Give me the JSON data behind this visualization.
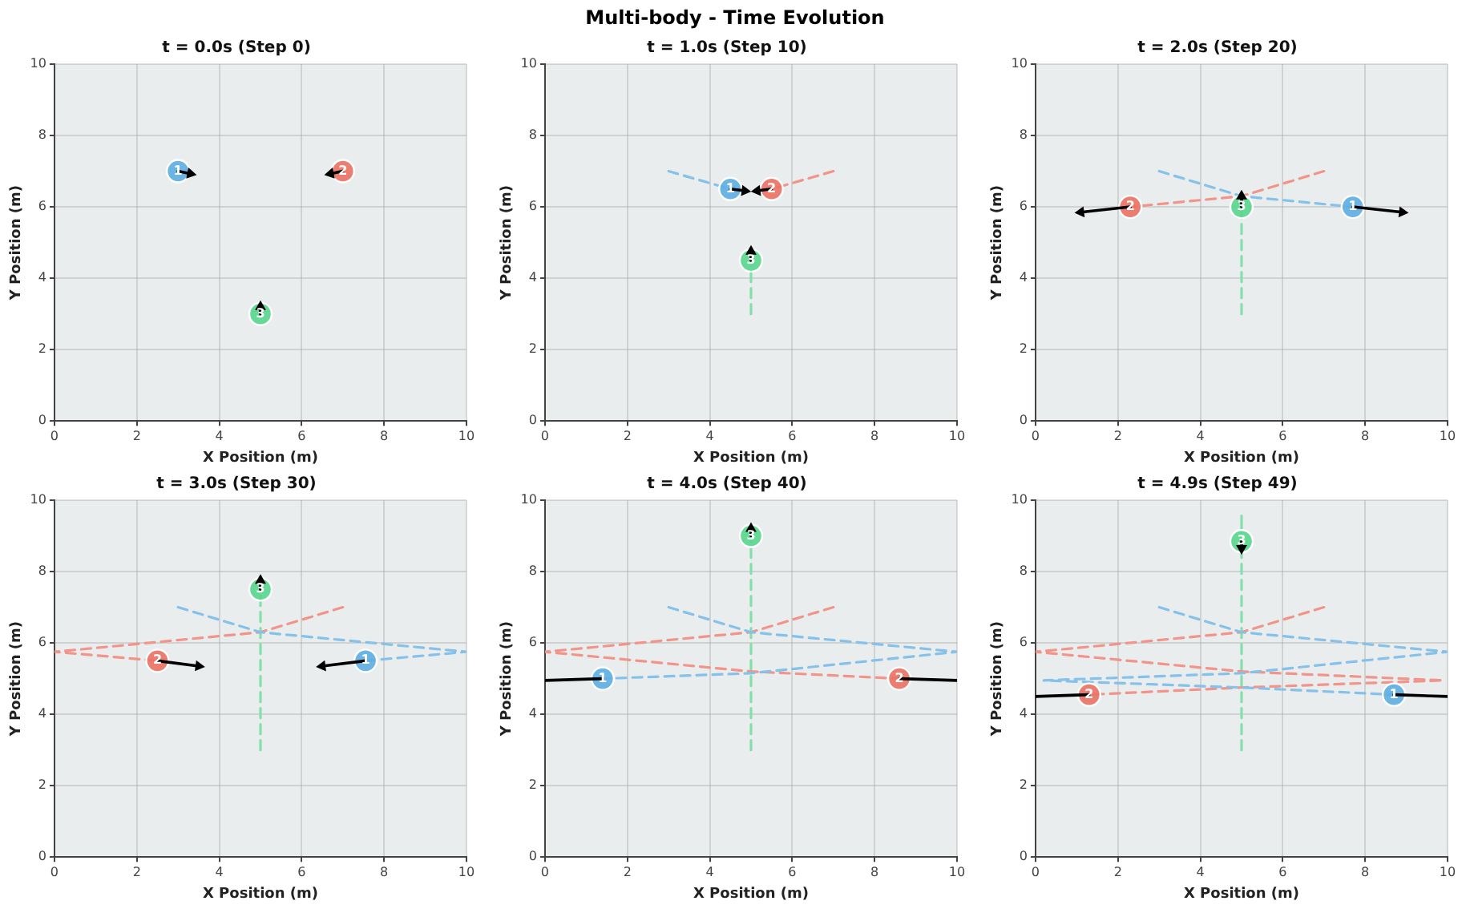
{
  "chart_data": [
    {
      "type": "scatter",
      "title": "t = 0.0s (Step 0)",
      "xlabel": "X Position (m)",
      "ylabel": "Y Position (m)",
      "annotations": [
        "Multi-body - Time Evolution",
        {
          "text": "1",
          "x": 3,
          "y": 7
        },
        {
          "text": "2",
          "x": 7,
          "y": 7
        },
        {
          "text": "3",
          "x": 5,
          "y": 3
        }
      ],
      "xlim": [
        0,
        10
      ],
      "ylim": [
        0,
        10
      ],
      "xticks": [
        0,
        2,
        4,
        6,
        8,
        10
      ],
      "yticks": [
        0,
        2,
        4,
        6,
        8,
        10
      ],
      "grid": true,
      "series": [
        {
          "type": "line",
          "color": "#000000",
          "x": [
            3,
            3.3
          ],
          "values": [
            7,
            6.93
          ],
          "marker": "triangle",
          "line_style": "solid"
        },
        {
          "type": "line",
          "color": "#000000",
          "x": [
            7,
            6.7
          ],
          "values": [
            7,
            6.93
          ],
          "marker": "triangle",
          "line_style": "solid"
        },
        {
          "type": "line",
          "color": "#000000",
          "x": [
            5,
            5
          ],
          "values": [
            3,
            3.2
          ],
          "marker": "triangle",
          "line_style": "solid"
        },
        {
          "type": "scatter",
          "color": "#5dade2",
          "x": [
            3
          ],
          "values": [
            7
          ],
          "marker": "circle"
        },
        {
          "type": "scatter",
          "color": "#ec7063",
          "x": [
            7
          ],
          "values": [
            7
          ],
          "marker": "circle"
        },
        {
          "type": "scatter",
          "color": "#58d68d",
          "x": [
            5
          ],
          "values": [
            3
          ],
          "marker": "circle"
        }
      ]
    },
    {
      "type": "scatter",
      "title": "t = 1.0s (Step 10)",
      "xlabel": "X Position (m)",
      "ylabel": "Y Position (m)",
      "annotations": [
        {
          "text": "1",
          "x": 4.5,
          "y": 6.5
        },
        {
          "text": "2",
          "x": 5.5,
          "y": 6.5
        },
        {
          "text": "3",
          "x": 5,
          "y": 4.5
        }
      ],
      "xlim": [
        0,
        10
      ],
      "ylim": [
        0,
        10
      ],
      "xticks": [
        0,
        2,
        4,
        6,
        8,
        10
      ],
      "yticks": [
        0,
        2,
        4,
        6,
        8,
        10
      ],
      "grid": true,
      "series": [
        {
          "type": "line",
          "color": "#85c1e9",
          "x": [
            3,
            4.5
          ],
          "values": [
            7,
            6.5
          ],
          "marker": "none",
          "line_style": "dashed"
        },
        {
          "type": "line",
          "color": "#f1948a",
          "x": [
            7,
            5.5
          ],
          "values": [
            7,
            6.5
          ],
          "marker": "none",
          "line_style": "dashed"
        },
        {
          "type": "line",
          "color": "#82e0aa",
          "x": [
            5,
            5
          ],
          "values": [
            3,
            4.5
          ],
          "marker": "none",
          "line_style": "dashed"
        },
        {
          "type": "line",
          "color": "#000000",
          "x": [
            4.5,
            4.85
          ],
          "values": [
            6.5,
            6.45
          ],
          "marker": "triangle",
          "line_style": "solid"
        },
        {
          "type": "line",
          "color": "#000000",
          "x": [
            5.5,
            5.15
          ],
          "values": [
            6.5,
            6.45
          ],
          "marker": "triangle",
          "line_style": "solid"
        },
        {
          "type": "line",
          "color": "#000000",
          "x": [
            5,
            5
          ],
          "values": [
            4.5,
            4.75
          ],
          "marker": "triangle",
          "line_style": "solid"
        },
        {
          "type": "scatter",
          "color": "#5dade2",
          "x": [
            4.5
          ],
          "values": [
            6.5
          ],
          "marker": "circle"
        },
        {
          "type": "scatter",
          "color": "#ec7063",
          "x": [
            5.5
          ],
          "values": [
            6.5
          ],
          "marker": "circle"
        },
        {
          "type": "scatter",
          "color": "#58d68d",
          "x": [
            5
          ],
          "values": [
            4.5
          ],
          "marker": "circle"
        }
      ]
    },
    {
      "type": "scatter",
      "title": "t = 2.0s (Step 20)",
      "xlabel": "X Position (m)",
      "ylabel": "Y Position (m)",
      "annotations": [
        {
          "text": "1",
          "x": 7.7,
          "y": 6
        },
        {
          "text": "2",
          "x": 2.3,
          "y": 6
        },
        {
          "text": "3",
          "x": 5,
          "y": 6
        }
      ],
      "xlim": [
        0,
        10
      ],
      "ylim": [
        0,
        10
      ],
      "xticks": [
        0,
        2,
        4,
        6,
        8,
        10
      ],
      "yticks": [
        0,
        2,
        4,
        6,
        8,
        10
      ],
      "grid": true,
      "series": [
        {
          "type": "line",
          "color": "#85c1e9",
          "x": [
            3,
            5,
            7.7
          ],
          "values": [
            7,
            6.3,
            6
          ],
          "marker": "none",
          "line_style": "dashed"
        },
        {
          "type": "line",
          "color": "#f1948a",
          "x": [
            7,
            5,
            2.3
          ],
          "values": [
            7,
            6.3,
            6
          ],
          "marker": "none",
          "line_style": "dashed"
        },
        {
          "type": "line",
          "color": "#82e0aa",
          "x": [
            5,
            5
          ],
          "values": [
            3,
            6
          ],
          "marker": "none",
          "line_style": "dashed"
        },
        {
          "type": "line",
          "color": "#000000",
          "x": [
            7.7,
            8.9
          ],
          "values": [
            6,
            5.85
          ],
          "marker": "triangle",
          "line_style": "solid"
        },
        {
          "type": "line",
          "color": "#000000",
          "x": [
            2.3,
            1.1
          ],
          "values": [
            6,
            5.85
          ],
          "marker": "triangle",
          "line_style": "solid"
        },
        {
          "type": "line",
          "color": "#000000",
          "x": [
            5,
            5
          ],
          "values": [
            6,
            6.3
          ],
          "marker": "triangle",
          "line_style": "solid"
        },
        {
          "type": "scatter",
          "color": "#5dade2",
          "x": [
            7.7
          ],
          "values": [
            6
          ],
          "marker": "circle"
        },
        {
          "type": "scatter",
          "color": "#ec7063",
          "x": [
            2.3
          ],
          "values": [
            6
          ],
          "marker": "circle"
        },
        {
          "type": "scatter",
          "color": "#58d68d",
          "x": [
            5
          ],
          "values": [
            6
          ],
          "marker": "circle"
        }
      ]
    },
    {
      "type": "scatter",
      "title": "t = 3.0s (Step 30)",
      "xlabel": "X Position (m)",
      "ylabel": "Y Position (m)",
      "annotations": [
        {
          "text": "1",
          "x": 7.55,
          "y": 5.5
        },
        {
          "text": "2",
          "x": 2.5,
          "y": 5.5
        },
        {
          "text": "3",
          "x": 5,
          "y": 7.5
        }
      ],
      "xlim": [
        0,
        10
      ],
      "ylim": [
        0,
        10
      ],
      "xticks": [
        0,
        2,
        4,
        6,
        8,
        10
      ],
      "yticks": [
        0,
        2,
        4,
        6,
        8,
        10
      ],
      "grid": true,
      "series": [
        {
          "type": "line",
          "color": "#85c1e9",
          "x": [
            3,
            5,
            10,
            7.55
          ],
          "values": [
            7,
            6.3,
            5.75,
            5.5
          ],
          "marker": "none",
          "line_style": "dashed"
        },
        {
          "type": "line",
          "color": "#f1948a",
          "x": [
            7,
            5,
            0,
            2.5
          ],
          "values": [
            7,
            6.3,
            5.75,
            5.5
          ],
          "marker": "none",
          "line_style": "dashed"
        },
        {
          "type": "line",
          "color": "#82e0aa",
          "x": [
            5,
            5
          ],
          "values": [
            3,
            7.5
          ],
          "marker": "none",
          "line_style": "dashed"
        },
        {
          "type": "line",
          "color": "#000000",
          "x": [
            7.55,
            6.5
          ],
          "values": [
            5.5,
            5.35
          ],
          "marker": "triangle",
          "line_style": "solid"
        },
        {
          "type": "line",
          "color": "#000000",
          "x": [
            2.5,
            3.5
          ],
          "values": [
            5.5,
            5.35
          ],
          "marker": "triangle",
          "line_style": "solid"
        },
        {
          "type": "line",
          "color": "#000000",
          "x": [
            5,
            5
          ],
          "values": [
            7.5,
            7.75
          ],
          "marker": "triangle",
          "line_style": "solid"
        },
        {
          "type": "scatter",
          "color": "#5dade2",
          "x": [
            7.55
          ],
          "values": [
            5.5
          ],
          "marker": "circle"
        },
        {
          "type": "scatter",
          "color": "#ec7063",
          "x": [
            2.5
          ],
          "values": [
            5.5
          ],
          "marker": "circle"
        },
        {
          "type": "scatter",
          "color": "#58d68d",
          "x": [
            5
          ],
          "values": [
            7.5
          ],
          "marker": "circle"
        }
      ]
    },
    {
      "type": "scatter",
      "title": "t = 4.0s (Step 40)",
      "xlabel": "X Position (m)",
      "ylabel": "Y Position (m)",
      "annotations": [
        {
          "text": "1",
          "x": 1.4,
          "y": 5
        },
        {
          "text": "2",
          "x": 8.6,
          "y": 5
        },
        {
          "text": "3",
          "x": 5,
          "y": 9
        }
      ],
      "xlim": [
        0,
        10
      ],
      "ylim": [
        0,
        10
      ],
      "xticks": [
        0,
        2,
        4,
        6,
        8,
        10
      ],
      "yticks": [
        0,
        2,
        4,
        6,
        8,
        10
      ],
      "grid": true,
      "series": [
        {
          "type": "line",
          "color": "#85c1e9",
          "x": [
            3,
            5,
            10,
            5,
            1.4
          ],
          "values": [
            7,
            6.3,
            5.75,
            5.15,
            5
          ],
          "marker": "none",
          "line_style": "dashed"
        },
        {
          "type": "line",
          "color": "#f1948a",
          "x": [
            7,
            5,
            0,
            5,
            8.6
          ],
          "values": [
            7,
            6.3,
            5.75,
            5.2,
            5
          ],
          "marker": "none",
          "line_style": "dashed"
        },
        {
          "type": "line",
          "color": "#82e0aa",
          "x": [
            5,
            5
          ],
          "values": [
            3,
            9
          ],
          "marker": "none",
          "line_style": "dashed"
        },
        {
          "type": "line",
          "color": "#000000",
          "x": [
            1.4,
            0
          ],
          "values": [
            5,
            4.95
          ],
          "marker": "none",
          "line_style": "solid"
        },
        {
          "type": "line",
          "color": "#000000",
          "x": [
            8.6,
            10
          ],
          "values": [
            5,
            4.95
          ],
          "marker": "none",
          "line_style": "solid"
        },
        {
          "type": "line",
          "color": "#000000",
          "x": [
            5,
            5
          ],
          "values": [
            9,
            9.2
          ],
          "marker": "triangle",
          "line_style": "solid"
        },
        {
          "type": "scatter",
          "color": "#5dade2",
          "x": [
            1.4
          ],
          "values": [
            5
          ],
          "marker": "circle"
        },
        {
          "type": "scatter",
          "color": "#ec7063",
          "x": [
            8.6
          ],
          "values": [
            5
          ],
          "marker": "circle"
        },
        {
          "type": "scatter",
          "color": "#58d68d",
          "x": [
            5
          ],
          "values": [
            9
          ],
          "marker": "circle"
        }
      ]
    },
    {
      "type": "scatter",
      "title": "t = 4.9s (Step 49)",
      "xlabel": "X Position (m)",
      "ylabel": "Y Position (m)",
      "annotations": [
        {
          "text": "1",
          "x": 8.7,
          "y": 4.55
        },
        {
          "text": "2",
          "x": 1.3,
          "y": 4.55
        },
        {
          "text": "3",
          "x": 5,
          "y": 8.85
        }
      ],
      "xlim": [
        0,
        10
      ],
      "ylim": [
        0,
        10
      ],
      "xticks": [
        0,
        2,
        4,
        6,
        8,
        10
      ],
      "yticks": [
        0,
        2,
        4,
        6,
        8,
        10
      ],
      "grid": true,
      "series": [
        {
          "type": "line",
          "color": "#85c1e9",
          "x": [
            3,
            5,
            10,
            5,
            0.2,
            5,
            8.7
          ],
          "values": [
            7,
            6.3,
            5.75,
            5.15,
            4.95,
            4.75,
            4.55
          ],
          "marker": "none",
          "line_style": "dashed"
        },
        {
          "type": "line",
          "color": "#f1948a",
          "x": [
            7,
            5,
            0,
            5,
            9.9,
            5,
            1.3
          ],
          "values": [
            7,
            6.3,
            5.75,
            5.2,
            4.95,
            4.75,
            4.55
          ],
          "marker": "none",
          "line_style": "dashed"
        },
        {
          "type": "line",
          "color": "#82e0aa",
          "x": [
            5,
            5,
            5
          ],
          "values": [
            3,
            9.6,
            8.85
          ],
          "marker": "none",
          "line_style": "dashed"
        },
        {
          "type": "line",
          "color": "#000000",
          "x": [
            8.7,
            10
          ],
          "values": [
            4.55,
            4.5
          ],
          "marker": "none",
          "line_style": "solid"
        },
        {
          "type": "line",
          "color": "#000000",
          "x": [
            1.3,
            0
          ],
          "values": [
            4.55,
            4.5
          ],
          "marker": "none",
          "line_style": "solid"
        },
        {
          "type": "line",
          "color": "#000000",
          "x": [
            5,
            5
          ],
          "values": [
            8.85,
            8.65
          ],
          "marker": "triangle",
          "line_style": "solid"
        },
        {
          "type": "scatter",
          "color": "#5dade2",
          "x": [
            8.7
          ],
          "values": [
            4.55
          ],
          "marker": "circle"
        },
        {
          "type": "scatter",
          "color": "#ec7063",
          "x": [
            1.3
          ],
          "values": [
            4.55
          ],
          "marker": "circle"
        },
        {
          "type": "scatter",
          "color": "#58d68d",
          "x": [
            5
          ],
          "values": [
            8.85
          ],
          "marker": "circle"
        }
      ]
    }
  ]
}
